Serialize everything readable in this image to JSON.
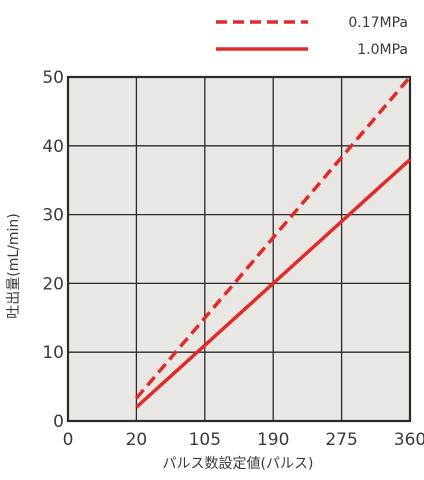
{
  "chart_data": {
    "type": "line",
    "xlabel": "パルス数設定値(パルス)",
    "ylabel": "吐出量(mL/min)",
    "x_tick_labels": [
      "0",
      "20",
      "105",
      "190",
      "275",
      "360"
    ],
    "y_ticks": [
      0,
      10,
      20,
      30,
      40,
      50
    ],
    "ylim": [
      0,
      50
    ],
    "grid": true,
    "legend_position": "top-right",
    "plot_background": "#e9e7e3",
    "grid_color": "#2b2b2b",
    "series": [
      {
        "name": "0.17MPa",
        "color": "#e02b2b",
        "line_style": "dashed",
        "points": [
          {
            "x": "20",
            "y": 3.3
          },
          {
            "x": "360",
            "y": 50
          }
        ]
      },
      {
        "name": "1.0MPa",
        "color": "#e02b2b",
        "line_style": "solid",
        "points": [
          {
            "x": "20",
            "y": 2.0
          },
          {
            "x": "360",
            "y": 38
          }
        ]
      }
    ]
  }
}
